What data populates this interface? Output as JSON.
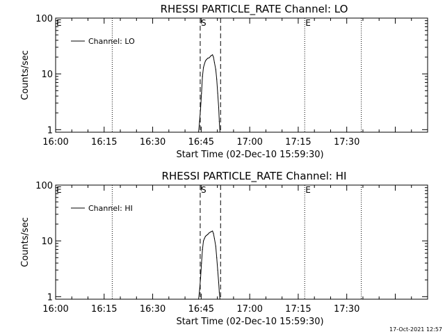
{
  "chart_data": [
    {
      "type": "line",
      "title": "RHESSI PARTICLE_RATE Channel: LO",
      "xlabel": "Start Time (02-Dec-10 15:59:30)",
      "ylabel": "Counts/sec",
      "yscale": "log",
      "ylim": [
        0.9,
        100
      ],
      "yticks": [
        {
          "value": 1,
          "label": "1"
        },
        {
          "value": 10,
          "label": "10"
        },
        {
          "value": 100,
          "label": "100"
        }
      ],
      "xlim": [
        0,
        115
      ],
      "xticks": [
        {
          "value": 0,
          "label": "16:00"
        },
        {
          "value": 15,
          "label": "16:15"
        },
        {
          "value": 30,
          "label": "16:30"
        },
        {
          "value": 45,
          "label": "16:45"
        },
        {
          "value": 60,
          "label": "17:00"
        },
        {
          "value": 75,
          "label": "17:15"
        },
        {
          "value": 90,
          "label": "17:30"
        }
      ],
      "legend": {
        "label": "Channel: LO",
        "position": "top-left"
      },
      "markers": [
        {
          "label": "E",
          "x": 0,
          "style": "none"
        },
        {
          "label": "",
          "x": 17.5,
          "style": "dotted"
        },
        {
          "label": "S",
          "x": 44.7,
          "style": "dashed"
        },
        {
          "label": "",
          "x": 51,
          "style": "dashed"
        },
        {
          "label": "E",
          "x": 77,
          "style": "dotted"
        },
        {
          "label": "",
          "x": 94.5,
          "style": "dotted"
        }
      ],
      "series": [
        {
          "name": "Channel: LO",
          "x": [
            44.2,
            44.5,
            44.8,
            45.1,
            45.4,
            45.7,
            46.0,
            46.3,
            46.6,
            47.0,
            47.5,
            48.0,
            48.5,
            48.8,
            49.1,
            49.5,
            49.8,
            50.1,
            50.4,
            50.6,
            50.8
          ],
          "y": [
            0.9,
            1.4,
            2.3,
            4.5,
            9.0,
            13.0,
            15.0,
            17.0,
            18.0,
            19.0,
            19.5,
            21.0,
            22.0,
            20.0,
            16.0,
            12.0,
            8.0,
            4.5,
            2.5,
            1.4,
            0.9
          ]
        }
      ]
    },
    {
      "type": "line",
      "title": "RHESSI PARTICLE_RATE Channel: HI",
      "xlabel": "Start Time (02-Dec-10 15:59:30)",
      "ylabel": "Counts/sec",
      "yscale": "log",
      "ylim": [
        0.9,
        100
      ],
      "yticks": [
        {
          "value": 1,
          "label": "1"
        },
        {
          "value": 10,
          "label": "10"
        },
        {
          "value": 100,
          "label": "100"
        }
      ],
      "xlim": [
        0,
        115
      ],
      "xticks": [
        {
          "value": 0,
          "label": "16:00"
        },
        {
          "value": 15,
          "label": "16:15"
        },
        {
          "value": 30,
          "label": "16:30"
        },
        {
          "value": 45,
          "label": "16:45"
        },
        {
          "value": 60,
          "label": "17:00"
        },
        {
          "value": 75,
          "label": "17:15"
        },
        {
          "value": 90,
          "label": "17:30"
        }
      ],
      "legend": {
        "label": "Channel: HI",
        "position": "top-left"
      },
      "markers": [
        {
          "label": "E",
          "x": 0,
          "style": "none"
        },
        {
          "label": "",
          "x": 17.5,
          "style": "dotted"
        },
        {
          "label": "S",
          "x": 44.7,
          "style": "dashed"
        },
        {
          "label": "",
          "x": 51,
          "style": "dashed"
        },
        {
          "label": "E",
          "x": 77,
          "style": "dotted"
        },
        {
          "label": "",
          "x": 94.5,
          "style": "dotted"
        }
      ],
      "series": [
        {
          "name": "Channel: HI",
          "x": [
            44.2,
            44.5,
            44.8,
            45.1,
            45.4,
            45.7,
            46.0,
            46.3,
            46.6,
            47.0,
            47.5,
            48.0,
            48.5,
            48.8,
            49.1,
            49.5,
            49.8,
            50.1,
            50.4,
            50.6,
            50.8
          ],
          "y": [
            0.9,
            1.3,
            2.1,
            4.0,
            7.0,
            10.0,
            11.0,
            12.0,
            12.5,
            13.0,
            14.0,
            14.5,
            15.0,
            13.5,
            11.0,
            8.0,
            5.0,
            3.0,
            1.8,
            1.2,
            0.9
          ]
        }
      ]
    }
  ],
  "footer": {
    "timestamp": "17-Oct-2021 12:57"
  }
}
